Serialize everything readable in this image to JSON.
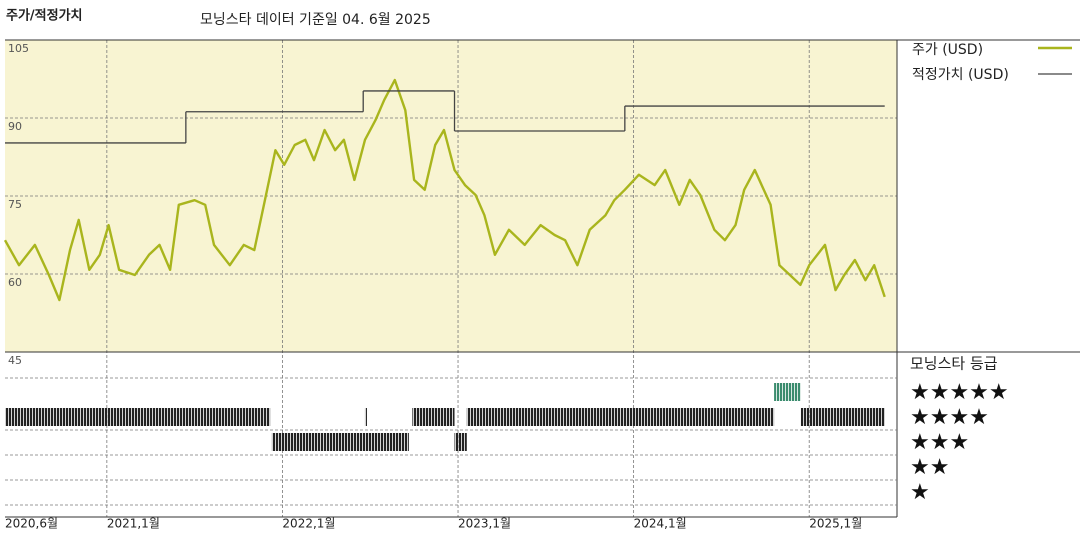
{
  "chart_data": {
    "type": "line",
    "title": "주가/적정가치",
    "subtitle": "모닝스타 데이터 기준일 04. 6월 2025",
    "series": [
      {
        "name": "주가 (USD)",
        "color": "#a9b51d",
        "x": [
          2020.42,
          2020.5,
          2020.59,
          2020.67,
          2020.73,
          2020.79,
          2020.84,
          2020.9,
          2020.96,
          2021.01,
          2021.07,
          2021.16,
          2021.24,
          2021.3,
          2021.36,
          2021.41,
          2021.5,
          2021.56,
          2021.61,
          2021.7,
          2021.78,
          2021.84,
          2021.9,
          2021.96,
          2022.01,
          2022.07,
          2022.13,
          2022.18,
          2022.24,
          2022.3,
          2022.35,
          2022.41,
          2022.47,
          2022.53,
          2022.58,
          2022.64,
          2022.7,
          2022.75,
          2022.81,
          2022.87,
          2022.92,
          2022.98,
          2023.04,
          2023.1,
          2023.15,
          2023.21,
          2023.29,
          2023.38,
          2023.47,
          2023.55,
          2023.61,
          2023.68,
          2023.75,
          2023.84,
          2023.89,
          2023.95,
          2024.03,
          2024.12,
          2024.18,
          2024.26,
          2024.32,
          2024.38,
          2024.46,
          2024.52,
          2024.58,
          2024.63,
          2024.69,
          2024.78,
          2024.83,
          2024.89,
          2024.95,
          2025.0,
          2025.09,
          2025.15,
          2025.2,
          2025.26,
          2025.32,
          2025.37,
          2025.43
        ],
        "values": [
          66.5,
          61.7,
          65.6,
          59.8,
          55,
          64.6,
          70.4,
          60.8,
          63.7,
          69.4,
          60.8,
          59.8,
          63.7,
          65.6,
          60.8,
          73.3,
          74.2,
          73.3,
          65.6,
          61.7,
          65.6,
          64.6,
          74.2,
          83.8,
          81,
          84.8,
          85.8,
          81.9,
          87.7,
          83.8,
          85.8,
          78.1,
          85.8,
          89.6,
          93.5,
          97.3,
          91.5,
          78.1,
          76.2,
          84.8,
          87.7,
          80,
          77.1,
          75.2,
          71.3,
          63.7,
          68.5,
          65.6,
          69.4,
          67.5,
          66.5,
          61.7,
          68.5,
          71.3,
          74.2,
          76.2,
          79.1,
          77.1,
          80,
          73.3,
          78.1,
          75.2,
          68.5,
          66.5,
          69.4,
          76.2,
          80,
          73.3,
          61.7,
          59.8,
          57.9,
          61.7,
          65.6,
          56.9,
          59.8,
          62.7,
          58.8,
          61.7,
          55.6
        ]
      },
      {
        "name": "적정가치 (USD)",
        "color": "#444444",
        "step": true,
        "x": [
          2020.42,
          2021.45,
          2022.46,
          2022.98,
          2023.95,
          2025.43
        ],
        "values": [
          85.2,
          91.2,
          95.2,
          87.5,
          92.3,
          92.3
        ]
      }
    ],
    "xlim": [
      2020.42,
      2025.5
    ],
    "xticks": [
      {
        "value": 2020.42,
        "label": "2020,6월"
      },
      {
        "value": 2021.0,
        "label": "2021,1월"
      },
      {
        "value": 2022.0,
        "label": "2022,1월"
      },
      {
        "value": 2023.0,
        "label": "2023,1월"
      },
      {
        "value": 2024.0,
        "label": "2024,1월"
      },
      {
        "value": 2025.0,
        "label": "2025,1월"
      }
    ],
    "ylim": [
      45,
      105
    ],
    "yticks": [
      105,
      90,
      75,
      60,
      45
    ],
    "grid": true,
    "background": "#f8f4d2",
    "ratings": {
      "title": "모닝스타 등급",
      "labels": [
        "★★★★★",
        "★★★★",
        "★★★",
        "★★",
        "★"
      ],
      "color": "#222222",
      "highlight_stars": 5,
      "highlight_color": "#3b8c6e",
      "periods": [
        {
          "start": 2020.42,
          "end": 2021.93,
          "stars": 4
        },
        {
          "start": 2021.94,
          "end": 2022.72,
          "stars": 3
        },
        {
          "start": 2022.47,
          "end": 2022.48,
          "stars": 4
        },
        {
          "start": 2022.74,
          "end": 2022.98,
          "stars": 4
        },
        {
          "start": 2022.98,
          "end": 2023.05,
          "stars": 3
        },
        {
          "start": 2023.05,
          "end": 2024.8,
          "stars": 4
        },
        {
          "start": 2024.8,
          "end": 2024.95,
          "stars": 5
        },
        {
          "start": 2024.95,
          "end": 2025.43,
          "stars": 4
        }
      ]
    }
  }
}
